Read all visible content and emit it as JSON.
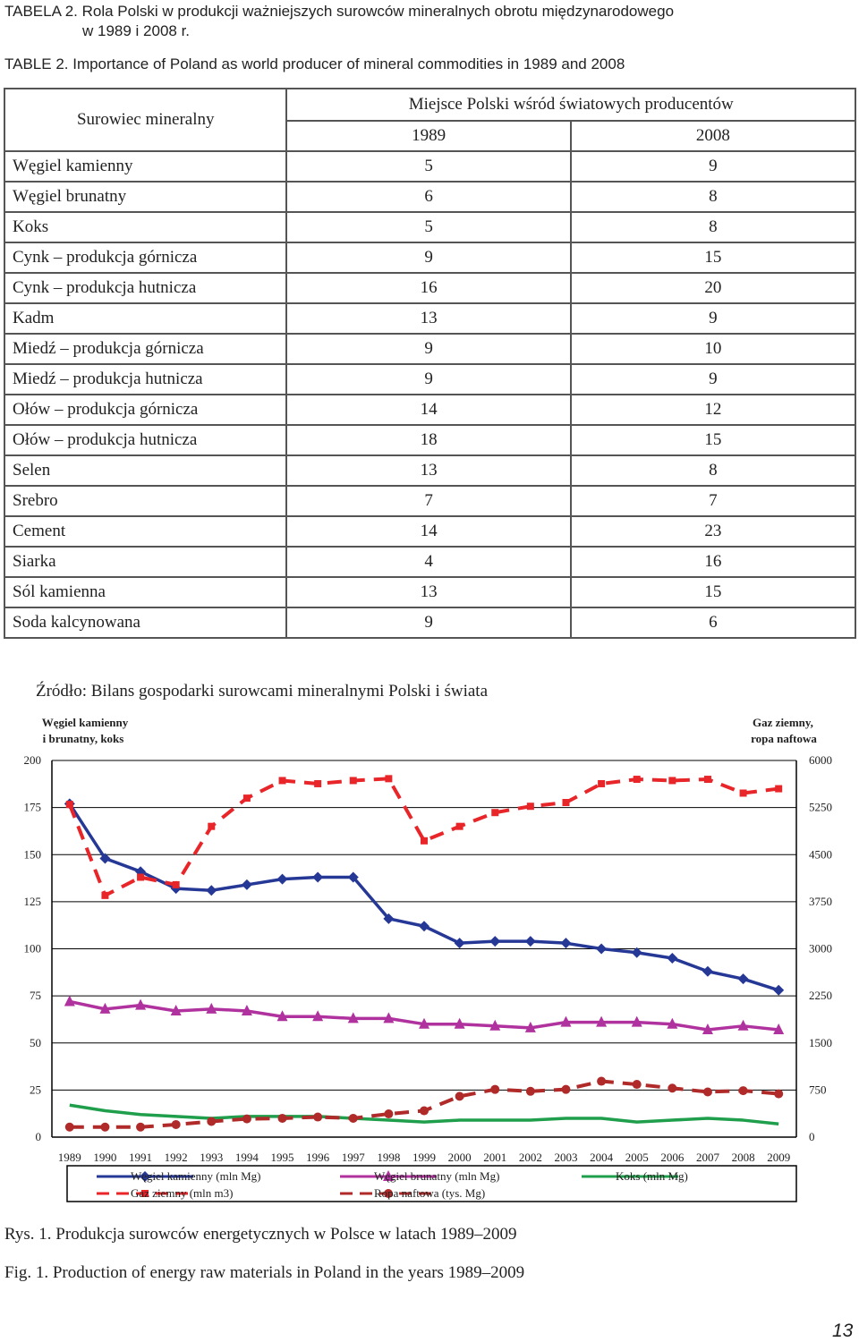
{
  "captions": {
    "table_pl_line1": "TABELA 2. Rola Polski w produkcji ważniejszych surowców mineralnych obrotu międzynarodowego",
    "table_pl_line2": "w 1989 i 2008 r.",
    "table_en": "TABLE 2. Importance of Poland as world producer of mineral commodities in 1989 and 2008"
  },
  "table": {
    "col_mineral": "Surowiec mineralny",
    "col_rank": "Miejsce Polski wśród światowych producentów",
    "year1": "1989",
    "year2": "2008",
    "rows": [
      {
        "name": "Węgiel kamienny",
        "y1989": "5",
        "y2008": "9"
      },
      {
        "name": "Węgiel brunatny",
        "y1989": "6",
        "y2008": "8"
      },
      {
        "name": "Koks",
        "y1989": "5",
        "y2008": "8"
      },
      {
        "name": "Cynk – produkcja górnicza",
        "y1989": "9",
        "y2008": "15"
      },
      {
        "name": "Cynk – produkcja hutnicza",
        "y1989": "16",
        "y2008": "20"
      },
      {
        "name": "Kadm",
        "y1989": "13",
        "y2008": "9"
      },
      {
        "name": "Miedź – produkcja górnicza",
        "y1989": "9",
        "y2008": "10"
      },
      {
        "name": "Miedź – produkcja hutnicza",
        "y1989": "9",
        "y2008": "9"
      },
      {
        "name": "Ołów – produkcja górnicza",
        "y1989": "14",
        "y2008": "12"
      },
      {
        "name": "Ołów – produkcja hutnicza",
        "y1989": "18",
        "y2008": "15"
      },
      {
        "name": "Selen",
        "y1989": "13",
        "y2008": "8"
      },
      {
        "name": "Srebro",
        "y1989": "7",
        "y2008": "7"
      },
      {
        "name": "Cement",
        "y1989": "14",
        "y2008": "23"
      },
      {
        "name": "Siarka",
        "y1989": "4",
        "y2008": "16"
      },
      {
        "name": "Sól kamienna",
        "y1989": "13",
        "y2008": "15"
      },
      {
        "name": "Soda kalcynowana",
        "y1989": "9",
        "y2008": "6"
      }
    ],
    "source": "Źródło: Bilans gospodarki surowcami mineralnymi Polski i świata"
  },
  "chart_data": {
    "type": "line",
    "title": "",
    "xlabel": "",
    "ylabel_left_line1": "Węgiel kamienny",
    "ylabel_left_line2": "i brunatny, koks",
    "ylabel_right_line1": "Gaz ziemny,",
    "ylabel_right_line2": "ropa naftowa",
    "ylim_left": [
      0,
      200
    ],
    "ylim_right": [
      0,
      6000
    ],
    "yticks_left": [
      "0",
      "25",
      "50",
      "75",
      "100",
      "125",
      "150",
      "175",
      "200"
    ],
    "yticks_right": [
      "0",
      "750",
      "1500",
      "2250",
      "3000",
      "3750",
      "4500",
      "5250",
      "6000"
    ],
    "grid": "horizontal",
    "legend_position": "bottom",
    "x": [
      "1989",
      "1990",
      "1991",
      "1992",
      "1993",
      "1994",
      "1995",
      "1996",
      "1997",
      "1998",
      "1999",
      "2000",
      "2001",
      "2002",
      "2003",
      "2004",
      "2005",
      "2006",
      "2007",
      "2008",
      "2009"
    ],
    "series": [
      {
        "name": "Węgiel kamienny (mln Mg)",
        "axis": "left",
        "color": "#263896",
        "style": "solid",
        "marker": "diamond",
        "values": [
          177,
          148,
          141,
          132,
          131,
          134,
          137,
          138,
          138,
          116,
          112,
          103,
          104,
          104,
          103,
          100,
          98,
          95,
          88,
          84,
          78
        ]
      },
      {
        "name": "Węgiel brunatny (mln Mg)",
        "axis": "left",
        "color": "#b0329e",
        "style": "solid",
        "marker": "triangle",
        "values": [
          72,
          68,
          70,
          67,
          68,
          67,
          64,
          64,
          63,
          63,
          60,
          60,
          59,
          58,
          61,
          61,
          61,
          60,
          57,
          59,
          57
        ]
      },
      {
        "name": "Koks (mln Mg)",
        "axis": "left",
        "color": "#1f9e4c",
        "style": "solid",
        "marker": "none",
        "values": [
          17,
          14,
          12,
          11,
          10,
          11,
          11,
          11,
          10,
          9,
          8,
          9,
          9,
          9,
          10,
          10,
          8,
          9,
          10,
          9,
          7
        ]
      },
      {
        "name": "Gaz ziemny (mln m3)",
        "axis": "right",
        "color": "#e8262a",
        "style": "dashed",
        "marker": "square",
        "values": [
          5300,
          3850,
          4140,
          4020,
          4950,
          5400,
          5680,
          5630,
          5680,
          5710,
          4720,
          4950,
          5170,
          5270,
          5330,
          5630,
          5700,
          5680,
          5700,
          5480,
          5550
        ]
      },
      {
        "name": "Ropa naftowa (tys. Mg)",
        "axis": "right",
        "color": "#b02a2a",
        "style": "dashed",
        "marker": "circle",
        "values": [
          160,
          160,
          160,
          200,
          250,
          290,
          300,
          320,
          300,
          370,
          420,
          650,
          760,
          730,
          760,
          890,
          840,
          780,
          720,
          740,
          690
        ]
      }
    ]
  },
  "figure": {
    "caption_pl": "Rys. 1. Produkcja surowców energetycznych w Polsce w latach 1989–2009",
    "caption_en": "Fig. 1. Production of energy raw materials in Poland in the years 1989–2009"
  },
  "page_number": "13"
}
